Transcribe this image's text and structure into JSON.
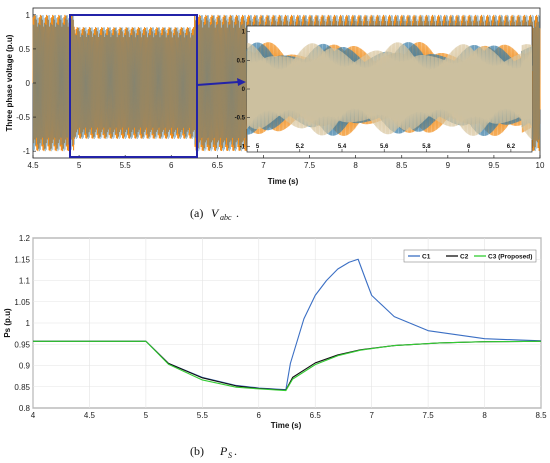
{
  "chart_data": [
    {
      "type": "line",
      "xlabel": "Time (s)",
      "ylabel": "Three phase voltage (p.u)",
      "xlim": [
        4.5,
        10
      ],
      "ylim": [
        -1.1,
        1.1
      ],
      "xticks": [
        "4.5",
        "5",
        "5.5",
        "6",
        "6.5",
        "7",
        "7.5",
        "8",
        "8.5",
        "9",
        "9.5",
        "10"
      ],
      "yticks": [
        "-1",
        "-0.5",
        "0",
        "0.5",
        "1"
      ],
      "series": [
        {
          "name": "",
          "color": "#f28e1c",
          "envelope": {
            "t": [
              4.5,
              4.95,
              4.95,
              6.25,
              6.25,
              10
            ],
            "amp": [
              1.0,
              1.0,
              0.82,
              0.82,
              1.0,
              1.0
            ]
          }
        },
        {
          "name": "",
          "color": "#3d7fa8",
          "envelope": {
            "t": [
              4.5,
              4.95,
              4.95,
              6.25,
              6.25,
              10
            ],
            "amp": [
              1.0,
              1.0,
              0.82,
              0.82,
              1.0,
              1.0
            ]
          }
        }
      ],
      "highlight_box_x": [
        4.95,
        6.3
      ],
      "inset": {
        "xlim": [
          4.95,
          6.3
        ],
        "ylim": [
          -1.1,
          1.1
        ],
        "xticks": [
          "5",
          "5.2",
          "5.4",
          "5.6",
          "5.8",
          "6",
          "6.2"
        ],
        "yticks": [
          "-1",
          "-0.5",
          "0",
          "0.5",
          "1"
        ]
      },
      "caption": {
        "prefix": "(a)",
        "symbol": "V",
        "subscript": "abc",
        "suffix": "."
      }
    },
    {
      "type": "line",
      "xlabel": "Time (s)",
      "ylabel": "Ps (p.u)",
      "xlim": [
        4,
        8.5
      ],
      "ylim": [
        0.8,
        1.2
      ],
      "xticks": [
        "4",
        "4.5",
        "5",
        "5.5",
        "6",
        "6.5",
        "7",
        "7.5",
        "8",
        "8.5"
      ],
      "yticks": [
        "0.8",
        "0.85",
        "0.9",
        "0.95",
        "1",
        "1.05",
        "1.1",
        "1.15",
        "1.2"
      ],
      "legend_position": "top-right",
      "series": [
        {
          "name": "C1",
          "color": "#3b6fc4",
          "x": [
            4,
            5,
            5.2,
            5.5,
            5.8,
            6.0,
            6.24,
            6.28,
            6.4,
            6.5,
            6.6,
            6.7,
            6.8,
            6.88,
            6.95,
            7.0,
            7.2,
            7.5,
            8.0,
            8.5
          ],
          "y": [
            0.957,
            0.957,
            0.905,
            0.872,
            0.853,
            0.847,
            0.843,
            0.905,
            1.01,
            1.065,
            1.1,
            1.127,
            1.143,
            1.15,
            1.1,
            1.065,
            1.015,
            0.982,
            0.963,
            0.958
          ]
        },
        {
          "name": "C2",
          "color": "#111111",
          "x": [
            4,
            5,
            5.2,
            5.5,
            5.8,
            6.0,
            6.24,
            6.3,
            6.5,
            6.7,
            6.9,
            7.2,
            7.6,
            8.0,
            8.5
          ],
          "y": [
            0.957,
            0.957,
            0.905,
            0.871,
            0.852,
            0.846,
            0.842,
            0.872,
            0.906,
            0.925,
            0.937,
            0.947,
            0.953,
            0.956,
            0.957
          ]
        },
        {
          "name": "C3 (Proposed)",
          "color": "#33cc33",
          "x": [
            4,
            5,
            5.2,
            5.5,
            5.8,
            6.0,
            6.24,
            6.3,
            6.5,
            6.7,
            6.9,
            7.2,
            7.6,
            8.0,
            8.5
          ],
          "y": [
            0.957,
            0.957,
            0.903,
            0.866,
            0.849,
            0.845,
            0.841,
            0.868,
            0.902,
            0.923,
            0.936,
            0.947,
            0.953,
            0.956,
            0.957
          ]
        }
      ],
      "caption": {
        "prefix": "(b)",
        "symbol": "P",
        "subscript": "S",
        "suffix": "."
      }
    }
  ]
}
